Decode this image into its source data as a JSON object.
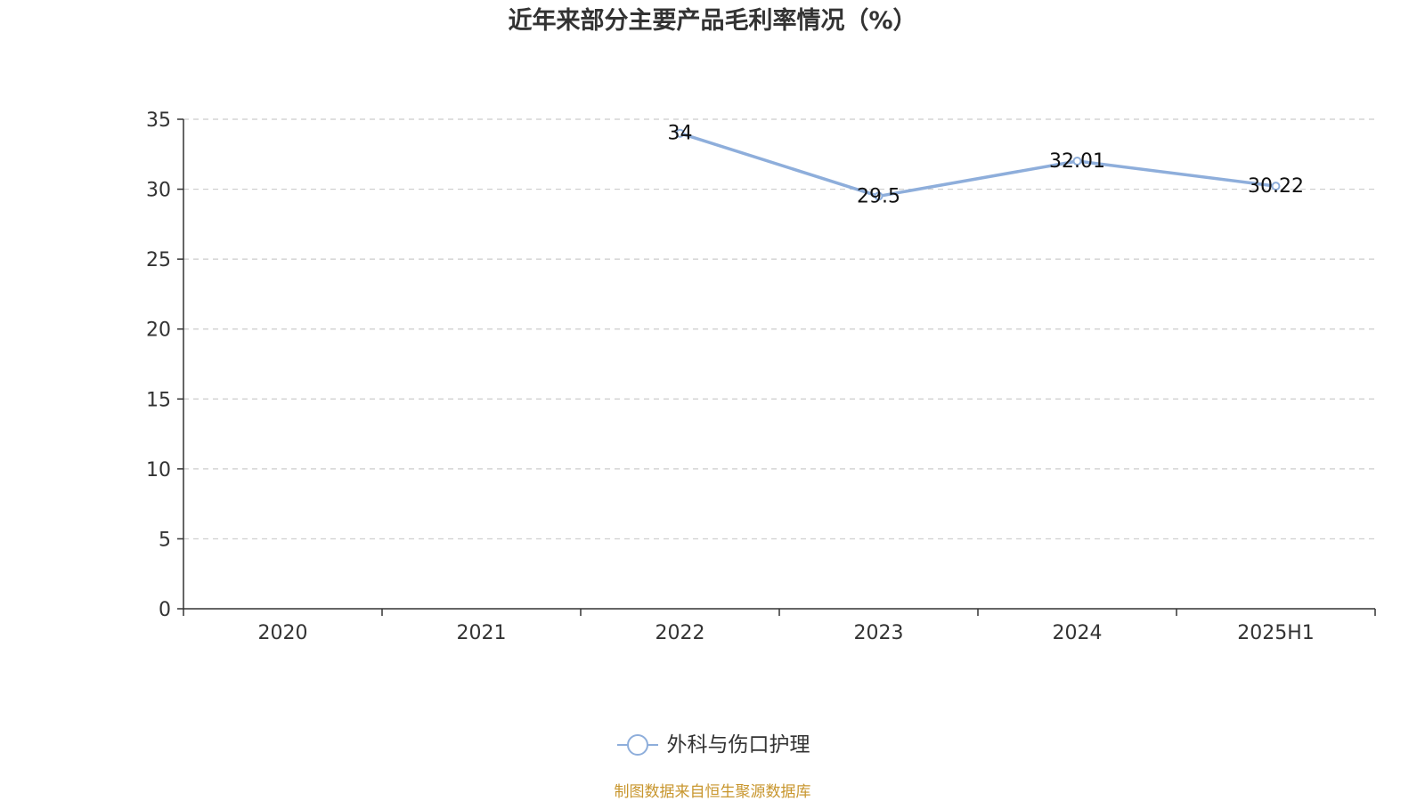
{
  "chart_data": {
    "type": "line",
    "title": "近年来部分主要产品毛利率情况（%）",
    "categories": [
      "2020",
      "2021",
      "2022",
      "2023",
      "2024",
      "2025H1"
    ],
    "series": [
      {
        "name": "外科与伤口护理",
        "values": [
          null,
          null,
          34,
          29.5,
          32.01,
          30.22
        ],
        "labels": [
          "",
          "",
          "34",
          "29.5",
          "32.01",
          "30.22"
        ],
        "color": "#8eaedb"
      }
    ],
    "ylim": [
      0,
      35
    ],
    "yticks": [
      "0",
      "5",
      "10",
      "15",
      "20",
      "25",
      "30",
      "35"
    ],
    "grid": true,
    "legend_position": "bottom"
  },
  "source_note": "制图数据来自恒生聚源数据库",
  "colors": {
    "line": "#8eaedb",
    "source_note": "#c8962e",
    "axis": "#333333",
    "grid": "#cccccc"
  }
}
